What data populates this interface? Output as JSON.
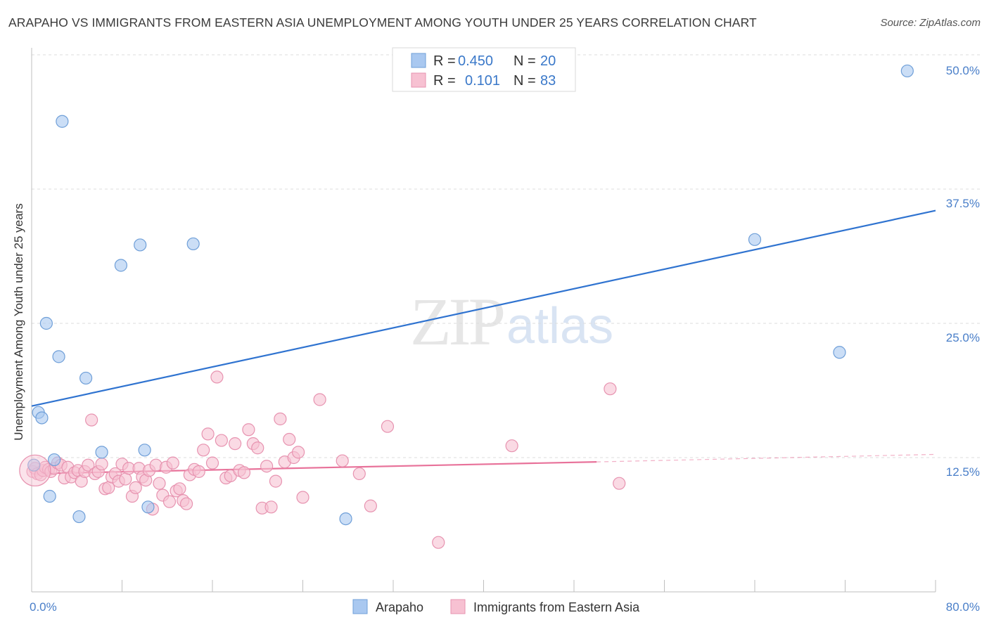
{
  "title": "ARAPAHO VS IMMIGRANTS FROM EASTERN ASIA UNEMPLOYMENT AMONG YOUTH UNDER 25 YEARS CORRELATION CHART",
  "source": "Source: ZipAtlas.com",
  "watermark": {
    "zip": "ZIP",
    "atlas": "atlas"
  },
  "chart_data": {
    "type": "scatter",
    "title": "ARAPAHO VS IMMIGRANTS FROM EASTERN ASIA UNEMPLOYMENT AMONG YOUTH UNDER 25 YEARS CORRELATION CHART",
    "xlabel": "",
    "ylabel": "Unemployment Among Youth under 25 years",
    "xlim": [
      0,
      80
    ],
    "ylim": [
      0,
      50
    ],
    "x_tick_labels": [
      "0.0%",
      "80.0%"
    ],
    "y_ticks": [
      12.5,
      25.0,
      37.5,
      50.0
    ],
    "y_tick_labels": [
      "12.5%",
      "25.0%",
      "37.5%",
      "50.0%"
    ],
    "grid": true,
    "legend_position": "top-center",
    "series": [
      {
        "name": "Arapaho",
        "color": "#a9c8f0",
        "edge": "#6f9fd8",
        "line_color": "#2f73d0",
        "R": "0.450",
        "N": "20",
        "trend": {
          "x0": 0,
          "y0": 17.3,
          "x1": 80,
          "y1": 35.5
        },
        "points": [
          [
            0.2,
            11.8
          ],
          [
            0.6,
            16.7
          ],
          [
            0.9,
            16.2
          ],
          [
            1.3,
            25.0
          ],
          [
            1.6,
            8.9
          ],
          [
            2.0,
            12.3
          ],
          [
            2.4,
            21.9
          ],
          [
            2.7,
            43.8
          ],
          [
            4.2,
            7.0
          ],
          [
            4.8,
            19.9
          ],
          [
            6.2,
            13.0
          ],
          [
            7.9,
            30.4
          ],
          [
            9.6,
            32.3
          ],
          [
            10.0,
            13.2
          ],
          [
            10.3,
            7.9
          ],
          [
            14.3,
            32.4
          ],
          [
            27.8,
            6.8
          ],
          [
            64.0,
            32.8
          ],
          [
            71.5,
            22.3
          ],
          [
            77.5,
            48.5
          ]
        ]
      },
      {
        "name": "Immigrants from Eastern Asia",
        "color": "#f7c1d2",
        "edge": "#e793b0",
        "line_color": "#e8729a",
        "R": "0.101",
        "N": "83",
        "trend": {
          "x0": 0,
          "y0": 11.0,
          "x1": 50,
          "y1": 12.1
        },
        "trend_dashed": {
          "x0": 50,
          "y0": 12.1,
          "x1": 80,
          "y1": 12.8
        },
        "points": [
          [
            0.1,
            11.2
          ],
          [
            0.3,
            11.5
          ],
          [
            0.5,
            11.0
          ],
          [
            0.8,
            10.9
          ],
          [
            1.0,
            11.3
          ],
          [
            1.2,
            11.6
          ],
          [
            1.5,
            11.4
          ],
          [
            1.7,
            11.2
          ],
          [
            2.0,
            11.5
          ],
          [
            2.3,
            12.0
          ],
          [
            2.6,
            11.8
          ],
          [
            2.9,
            10.6
          ],
          [
            3.2,
            11.6
          ],
          [
            3.5,
            10.7
          ],
          [
            3.8,
            11.1
          ],
          [
            4.1,
            11.3
          ],
          [
            4.4,
            10.3
          ],
          [
            4.7,
            11.2
          ],
          [
            5.0,
            11.8
          ],
          [
            5.3,
            16.0
          ],
          [
            5.6,
            11.0
          ],
          [
            5.9,
            11.2
          ],
          [
            6.2,
            11.9
          ],
          [
            6.5,
            9.6
          ],
          [
            6.8,
            9.7
          ],
          [
            7.1,
            10.7
          ],
          [
            7.4,
            11.0
          ],
          [
            7.7,
            10.3
          ],
          [
            8.0,
            11.9
          ],
          [
            8.3,
            10.5
          ],
          [
            8.6,
            11.5
          ],
          [
            8.9,
            8.9
          ],
          [
            9.2,
            9.7
          ],
          [
            9.5,
            11.5
          ],
          [
            9.8,
            10.7
          ],
          [
            10.1,
            10.4
          ],
          [
            10.4,
            11.3
          ],
          [
            10.7,
            7.7
          ],
          [
            11.0,
            11.8
          ],
          [
            11.3,
            10.1
          ],
          [
            11.6,
            9.0
          ],
          [
            11.9,
            11.6
          ],
          [
            12.2,
            8.4
          ],
          [
            12.5,
            12.0
          ],
          [
            12.8,
            9.4
          ],
          [
            13.1,
            9.6
          ],
          [
            13.4,
            8.5
          ],
          [
            13.7,
            8.2
          ],
          [
            14.0,
            10.9
          ],
          [
            14.4,
            11.4
          ],
          [
            14.8,
            11.2
          ],
          [
            15.2,
            13.2
          ],
          [
            15.6,
            14.7
          ],
          [
            16.0,
            12.0
          ],
          [
            16.4,
            20.0
          ],
          [
            16.8,
            14.1
          ],
          [
            17.2,
            10.6
          ],
          [
            17.6,
            10.8
          ],
          [
            18.0,
            13.8
          ],
          [
            18.4,
            11.3
          ],
          [
            18.8,
            11.1
          ],
          [
            19.2,
            15.1
          ],
          [
            19.6,
            13.8
          ],
          [
            20.0,
            13.4
          ],
          [
            20.4,
            7.8
          ],
          [
            20.8,
            11.7
          ],
          [
            21.2,
            7.9
          ],
          [
            21.6,
            10.3
          ],
          [
            22.0,
            16.1
          ],
          [
            22.4,
            12.1
          ],
          [
            22.8,
            14.2
          ],
          [
            23.2,
            12.5
          ],
          [
            23.6,
            13.0
          ],
          [
            24.0,
            8.8
          ],
          [
            25.5,
            17.9
          ],
          [
            27.5,
            12.2
          ],
          [
            29.0,
            11.0
          ],
          [
            30.0,
            8.0
          ],
          [
            31.5,
            15.4
          ],
          [
            36.0,
            4.6
          ],
          [
            42.5,
            13.6
          ],
          [
            51.2,
            18.9
          ],
          [
            52.0,
            10.1
          ]
        ]
      }
    ]
  },
  "legend": {
    "r_label": "R =",
    "n_label": "N =",
    "rows": [
      {
        "r": "0.450",
        "n": "20"
      },
      {
        "r": "0.101",
        "n": "83"
      }
    ]
  },
  "bottom_legend": [
    "Arapaho",
    "Immigrants from Eastern Asia"
  ]
}
